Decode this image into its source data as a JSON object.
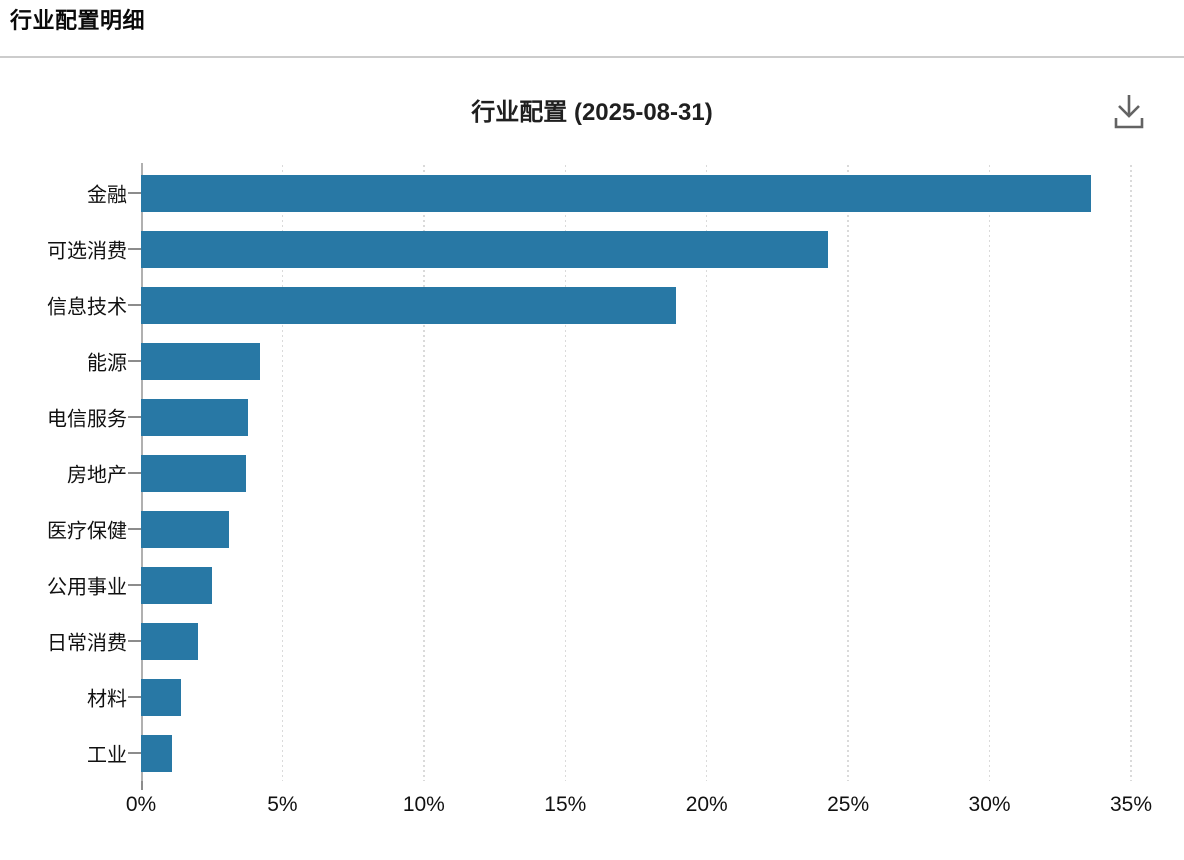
{
  "page": {
    "title": "行业配置明细"
  },
  "chart": {
    "title": "行业配置 (2025-08-31)",
    "download_label": "下载",
    "accent_color": "#2878a5",
    "grid_color": "#dadada"
  },
  "chart_data": {
    "type": "bar",
    "orientation": "horizontal",
    "title": "行业配置 (2025-08-31)",
    "categories": [
      "金融",
      "可选消费",
      "信息技术",
      "能源",
      "电信服务",
      "房地产",
      "医疗保健",
      "公用事业",
      "日常消费",
      "材料",
      "工业"
    ],
    "values": [
      33.6,
      24.3,
      18.9,
      4.2,
      3.8,
      3.7,
      3.1,
      2.5,
      2.0,
      1.4,
      1.1
    ],
    "unit": "%",
    "xlabel": "",
    "ylabel": "",
    "xlim": [
      0,
      35
    ],
    "x_tick_labels": [
      "0%",
      "5%",
      "10%",
      "15%",
      "20%",
      "25%",
      "30%",
      "35%"
    ],
    "x_tick_values": [
      0,
      5,
      10,
      15,
      20,
      25,
      30,
      35
    ],
    "grid": "vertical-dotted",
    "legend": "none",
    "bar_color": "#2878a5"
  }
}
